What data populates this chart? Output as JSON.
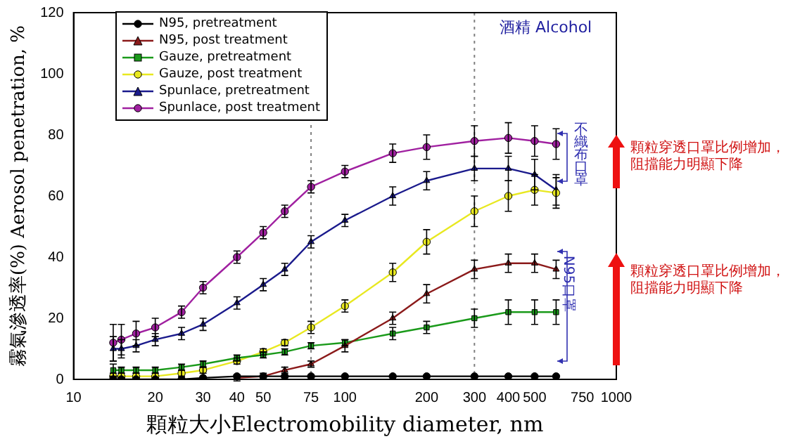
{
  "chart_data": {
    "type": "line",
    "xlabel": "顆粒大小Electromobility diameter, nm",
    "ylabel": "霧氣滲透率(%) Aerosol penetration, %",
    "x": [
      14,
      15,
      17,
      20,
      25,
      30,
      40,
      50,
      60,
      75,
      100,
      150,
      200,
      300,
      400,
      500,
      600
    ],
    "xlim": [
      10,
      1000
    ],
    "xticks": [
      10,
      20,
      30,
      40,
      50,
      75,
      100,
      200,
      300,
      400,
      500,
      750,
      1000
    ],
    "log": "x",
    "ylim": [
      0,
      120
    ],
    "yticks": [
      0,
      20,
      40,
      60,
      80,
      100,
      120
    ],
    "grid": false,
    "legend": "top left",
    "line_style": "solid",
    "series": [
      {
        "name": "N95, pretreatment",
        "color": "#000000",
        "marker": "circle",
        "values": [
          0,
          0,
          0,
          0,
          0,
          0.5,
          1,
          1,
          1,
          1,
          1,
          1,
          1,
          1,
          1,
          1,
          1
        ]
      },
      {
        "name": "N95, post treatment",
        "color": "#8b1a1a",
        "marker": "triangle",
        "values": [
          null,
          null,
          null,
          null,
          null,
          null,
          0.5,
          1,
          3,
          5,
          11,
          20,
          28,
          36,
          38,
          38,
          36
        ],
        "errors": [
          null,
          null,
          null,
          null,
          null,
          null,
          1,
          1,
          1,
          1,
          2,
          2,
          3,
          3,
          3,
          3,
          3
        ]
      },
      {
        "name": "Gauze, pretreatment",
        "color": "#1a9a1a",
        "marker": "square",
        "values": [
          3,
          3,
          3,
          3,
          4,
          5,
          7,
          8,
          9,
          11,
          12,
          15,
          17,
          20,
          22,
          22,
          22
        ],
        "errors": [
          2,
          1,
          1,
          1,
          1,
          1,
          1,
          1,
          1,
          1,
          1,
          2,
          2,
          3,
          4,
          4,
          4
        ]
      },
      {
        "name": "Gauze, post treatment",
        "color": "#e8e820",
        "marker": "circle",
        "values": [
          1,
          1,
          1,
          1,
          2,
          3,
          6,
          9,
          12,
          17,
          24,
          35,
          45,
          55,
          60,
          62,
          61
        ],
        "errors": [
          1,
          1,
          1,
          1,
          1,
          1,
          1,
          1,
          1,
          2,
          2,
          3,
          4,
          5,
          5,
          5,
          5
        ]
      },
      {
        "name": "Spunlace, pretreatment",
        "color": "#1a1a8c",
        "marker": "triangle",
        "values": [
          10,
          10,
          11,
          13,
          15,
          18,
          25,
          31,
          36,
          45,
          52,
          60,
          65,
          69,
          69,
          67,
          62
        ],
        "errors": [
          4,
          3,
          2,
          2,
          2,
          2,
          2,
          2,
          2,
          2,
          2,
          3,
          3,
          4,
          4,
          5,
          5
        ]
      },
      {
        "name": "Spunlace, post treatment",
        "color": "#a020a0",
        "marker": "circle",
        "values": [
          12,
          13,
          15,
          17,
          22,
          30,
          40,
          48,
          55,
          63,
          68,
          74,
          76,
          78,
          79,
          78,
          77
        ],
        "errors": [
          6,
          5,
          4,
          3,
          2,
          2,
          2,
          2,
          2,
          2,
          2,
          3,
          4,
          5,
          5,
          5,
          5
        ]
      }
    ],
    "ref_lines": [
      {
        "axis": "x",
        "value": 75,
        "line_style": "dotted",
        "color": "#808080"
      },
      {
        "axis": "x",
        "value": 300,
        "line_style": "dotted",
        "color": "#808080"
      }
    ],
    "annotations": [
      "酒精 Alcohol",
      "不織布口罩",
      "N95口罩",
      "顆粒穿透口罩比例增加，阻擋能力明顯下降",
      "顆粒穿透口罩比例增加，阻擋能力明顯下降"
    ]
  }
}
